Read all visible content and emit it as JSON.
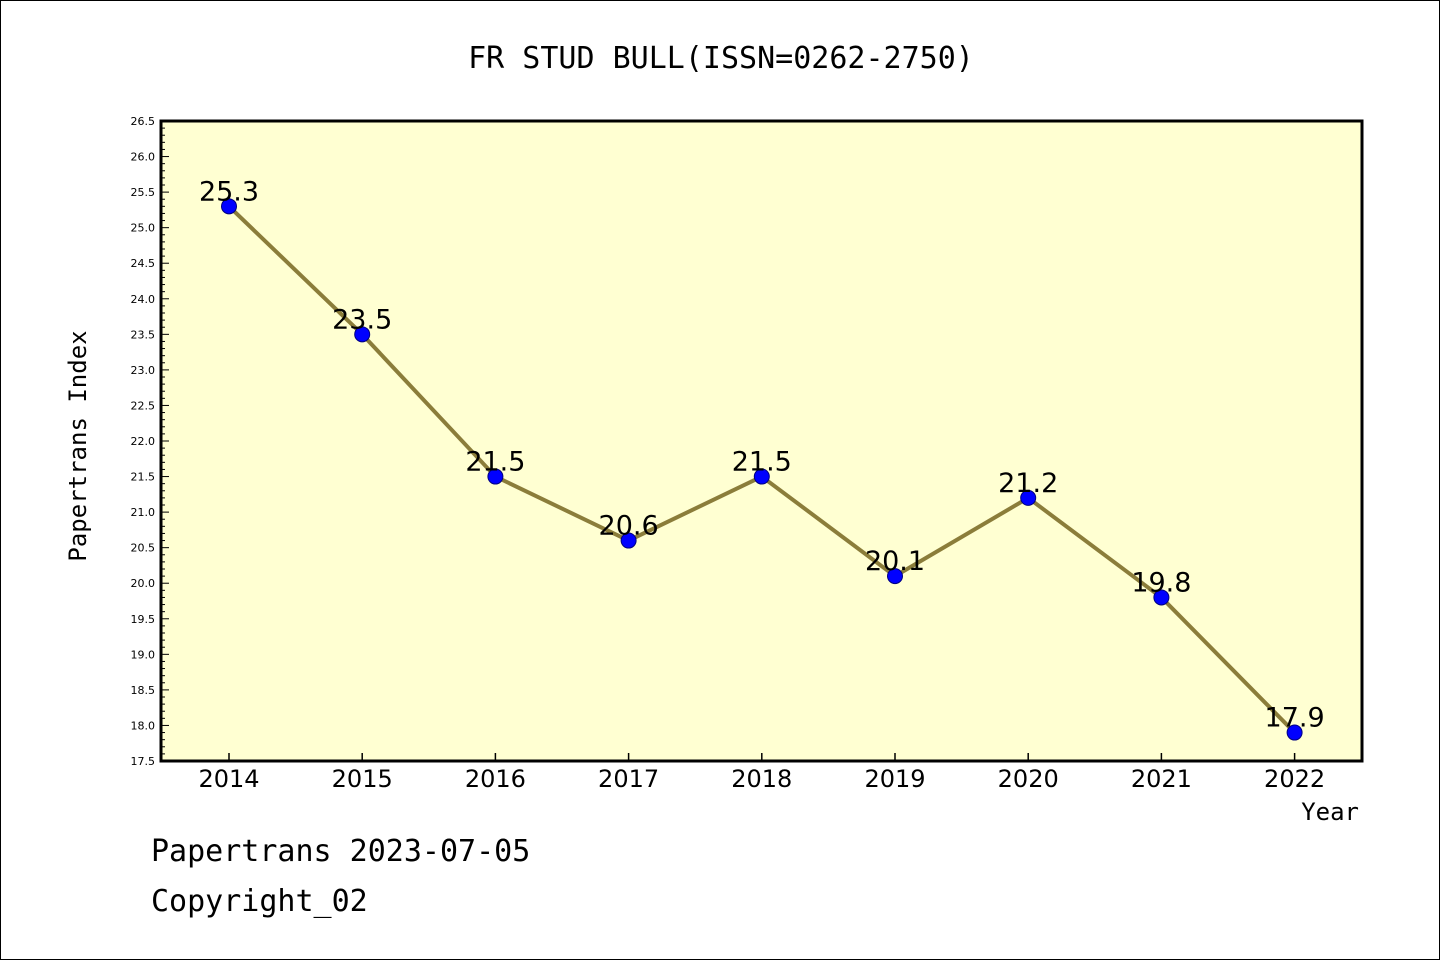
{
  "chart_data": {
    "type": "line",
    "title": "FR STUD BULL(ISSN=0262-2750)",
    "xlabel": "Year",
    "ylabel": "Papertrans Index",
    "categories": [
      "2014",
      "2015",
      "2016",
      "2017",
      "2018",
      "2019",
      "2020",
      "2021",
      "2022"
    ],
    "series": [
      {
        "values": [
          25.3,
          23.5,
          21.5,
          20.6,
          21.5,
          20.1,
          21.2,
          19.8,
          17.9
        ]
      }
    ],
    "data_labels": [
      "25.3",
      "23.5",
      "21.5",
      "20.6",
      "21.5",
      "20.1",
      "21.2",
      "19.8",
      "17.9"
    ],
    "ylim": [
      17.5,
      26.5
    ],
    "yticks": [
      "17.5",
      "18.0",
      "18.5",
      "19.0",
      "19.5",
      "20.0",
      "20.5",
      "21.0",
      "21.5",
      "22.0",
      "22.5",
      "23.0",
      "23.5",
      "24.0",
      "24.5",
      "25.0",
      "25.5",
      "26.0",
      "26.5"
    ],
    "grid": false,
    "colors": {
      "plot_bg": "#ffffd2",
      "line": "#8b7d3a",
      "marker": "#0000ff",
      "marker_edge": "#000080"
    }
  },
  "footer": {
    "source": "Papertrans 2023-07-05",
    "copyright": "Copyright_02"
  }
}
